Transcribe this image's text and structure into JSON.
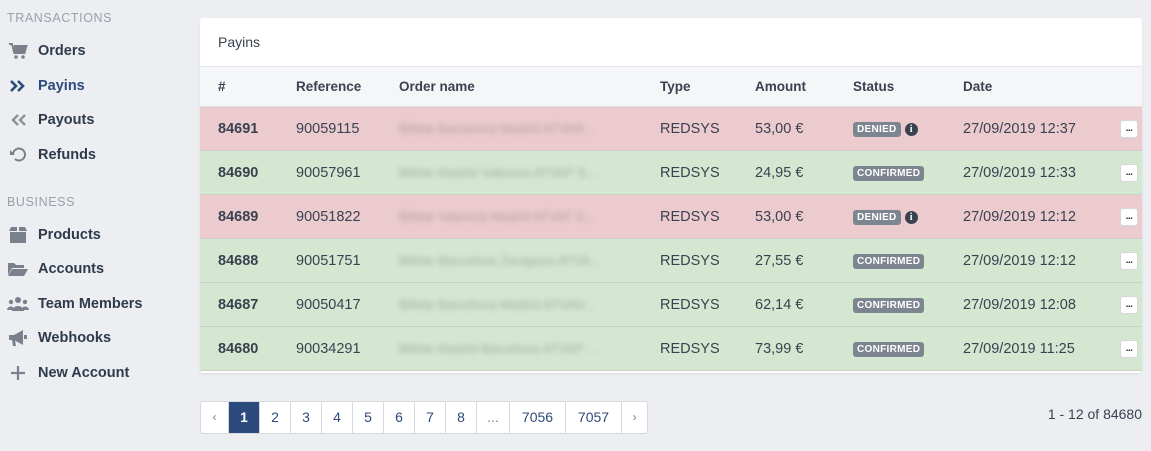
{
  "sidebar": {
    "sections": [
      {
        "title": "TRANSACTIONS",
        "items": [
          {
            "label": "Orders",
            "icon": "cart-icon"
          },
          {
            "label": "Payins",
            "icon": "double-chevron-right-icon"
          },
          {
            "label": "Payouts",
            "icon": "double-chevron-left-icon"
          },
          {
            "label": "Refunds",
            "icon": "undo-icon"
          }
        ]
      },
      {
        "title": "BUSINESS",
        "items": [
          {
            "label": "Products",
            "icon": "box-icon"
          },
          {
            "label": "Accounts",
            "icon": "folder-open-icon"
          },
          {
            "label": "Team Members",
            "icon": "users-icon"
          },
          {
            "label": "Webhooks",
            "icon": "bullhorn-icon"
          },
          {
            "label": "New Account",
            "icon": "plus-icon"
          }
        ]
      }
    ]
  },
  "card": {
    "title": "Payins",
    "columns": [
      "#",
      "Reference",
      "Order name",
      "Type",
      "Amount",
      "Status",
      "Date"
    ],
    "rows": [
      {
        "id": "84691",
        "reference": "90059115",
        "order_name": "Billete Barcelona Madrid ATVAR...",
        "type": "REDSYS",
        "amount": "53,00 €",
        "status": "DENIED",
        "date": "27/09/2019 12:37"
      },
      {
        "id": "84690",
        "reference": "90057961",
        "order_name": "Billete Madrid Valencia ATVAP S...",
        "type": "REDSYS",
        "amount": "24,95 €",
        "status": "CONFIRMED",
        "date": "27/09/2019 12:33"
      },
      {
        "id": "84689",
        "reference": "90051822",
        "order_name": "Billete Valencia Madrid ATVAT S...",
        "type": "REDSYS",
        "amount": "53,00 €",
        "status": "DENIED",
        "date": "27/09/2019 12:12"
      },
      {
        "id": "84688",
        "reference": "90051751",
        "order_name": "Billete Barcelona Zaragoza ATVA...",
        "type": "REDSYS",
        "amount": "27,55 €",
        "status": "CONFIRMED",
        "date": "27/09/2019 12:12"
      },
      {
        "id": "84687",
        "reference": "90050417",
        "order_name": "Billete Barcelona Madrid ATVAN...",
        "type": "REDSYS",
        "amount": "62,14 €",
        "status": "CONFIRMED",
        "date": "27/09/2019 12:08"
      },
      {
        "id": "84680",
        "reference": "90034291",
        "order_name": "Billete Madrid Barcelona ATVAP ...",
        "type": "REDSYS",
        "amount": "73,99 €",
        "status": "CONFIRMED",
        "date": "27/09/2019 11:25"
      }
    ],
    "more_label": "..."
  },
  "pagination": {
    "prev": "‹",
    "next": "›",
    "pages": [
      "1",
      "2",
      "3",
      "4",
      "5",
      "6",
      "7",
      "8",
      "...",
      "7056",
      "7057"
    ],
    "active": "1",
    "summary": "1 - 12 of 84680"
  },
  "colors": {
    "denied_row": "#eccbcf",
    "confirmed_row": "#d4e8d1",
    "accent": "#2d4a7c"
  }
}
